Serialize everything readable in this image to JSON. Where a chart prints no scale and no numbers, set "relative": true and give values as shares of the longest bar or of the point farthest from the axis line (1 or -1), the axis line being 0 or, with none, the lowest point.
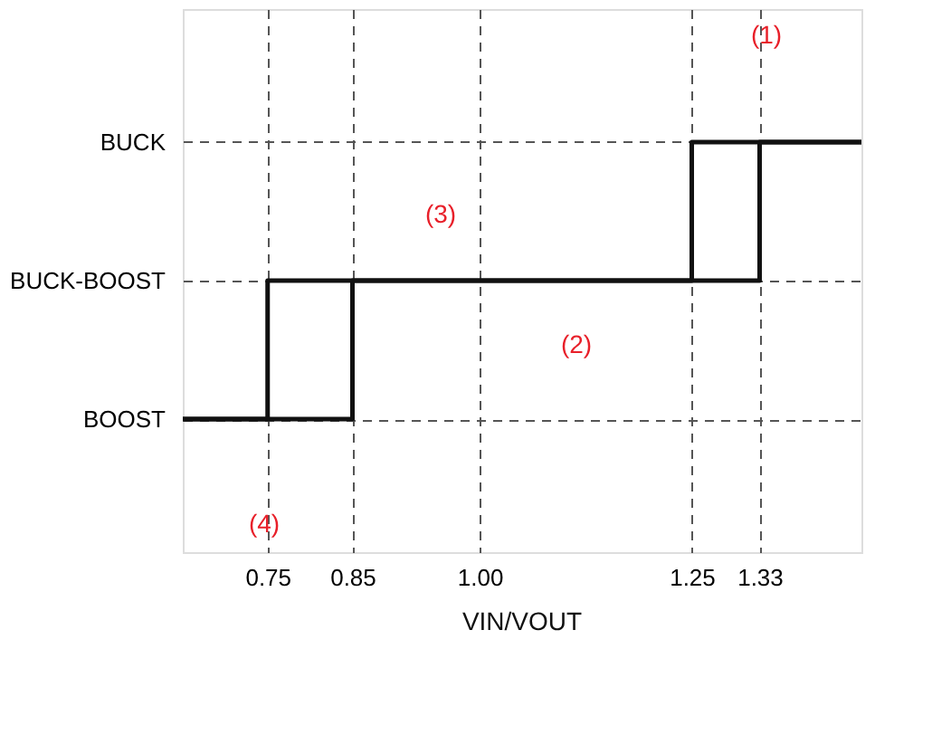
{
  "chart_data": {
    "type": "line",
    "xlabel": "VIN/VOUT",
    "relative": true,
    "xlim": [
      0.65,
      1.45
    ],
    "xticks": [
      0.75,
      0.85,
      {
        "value": 1,
        "label": "1.00"
      },
      1.25,
      1.33
    ],
    "y_categories": [
      "BUCK",
      "BUCK-BOOST",
      "BOOST"
    ],
    "series": [
      {
        "color": "#111111",
        "x": [
          0.65,
          0.85,
          0.85,
          1.33,
          1.33,
          1.45
        ],
        "values": [
          0,
          0,
          0.5,
          0.5,
          1,
          1
        ]
      },
      {
        "color": "#111111",
        "x": [
          1.45,
          1.25,
          1.25,
          0.75,
          0.75,
          0.65
        ],
        "values": [
          1,
          1,
          0.5,
          0.5,
          0,
          0
        ]
      }
    ],
    "annotations": [
      "(1)",
      "(2)",
      "(3)",
      "(4)"
    ],
    "grid": true,
    "marker": "none",
    "line_style": "solid"
  }
}
